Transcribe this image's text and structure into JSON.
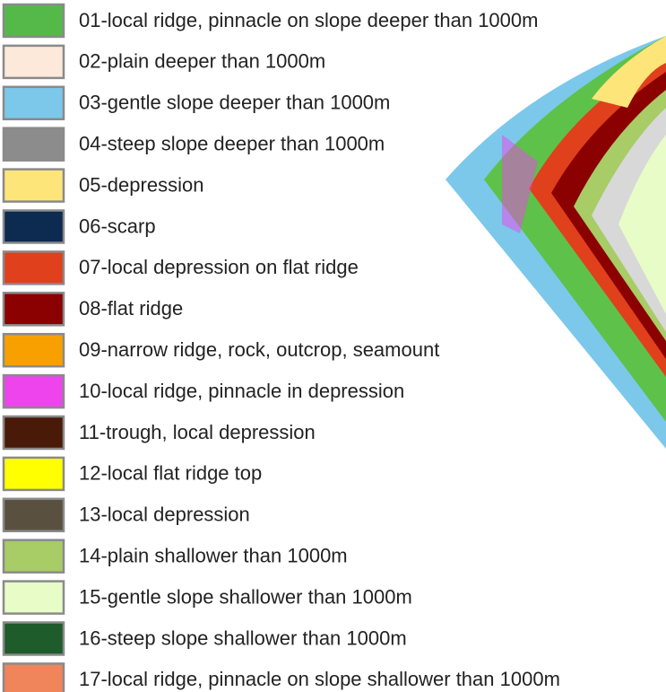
{
  "legend": {
    "items": [
      {
        "label": "01-local ridge, pinnacle on slope deeper than 1000m",
        "color": "#55b94a"
      },
      {
        "label": "02-plain deeper than 1000m",
        "color": "#fde9d9"
      },
      {
        "label": "03-gentle slope deeper than 1000m",
        "color": "#7cc8ea"
      },
      {
        "label": "04-steep slope deeper than 1000m",
        "color": "#8c8c8c"
      },
      {
        "label": "05-depression",
        "color": "#fde57a"
      },
      {
        "label": "06-scarp",
        "color": "#0d2a50"
      },
      {
        "label": "07-local depression on flat ridge",
        "color": "#e0401c"
      },
      {
        "label": "08-flat ridge",
        "color": "#8b0000"
      },
      {
        "label": "09-narrow ridge, rock, outcrop, seamount",
        "color": "#f8a000"
      },
      {
        "label": "10-local ridge, pinnacle in depression",
        "color": "#ee44ee"
      },
      {
        "label": "11-trough, local depression",
        "color": "#4a1a08"
      },
      {
        "label": "12-local flat ridge top",
        "color": "#ffff00"
      },
      {
        "label": "13-local depression",
        "color": "#5a5040"
      },
      {
        "label": "14-plain shallower than 1000m",
        "color": "#a8cc66"
      },
      {
        "label": "15-gentle slope shallower than 1000m",
        "color": "#e8fcc8"
      },
      {
        "label": "16-steep slope shallower than 1000m",
        "color": "#1f5c2c"
      },
      {
        "label": "17-local ridge, pinnacle on slope shallower than 1000m",
        "color": "#f0845a"
      }
    ]
  }
}
